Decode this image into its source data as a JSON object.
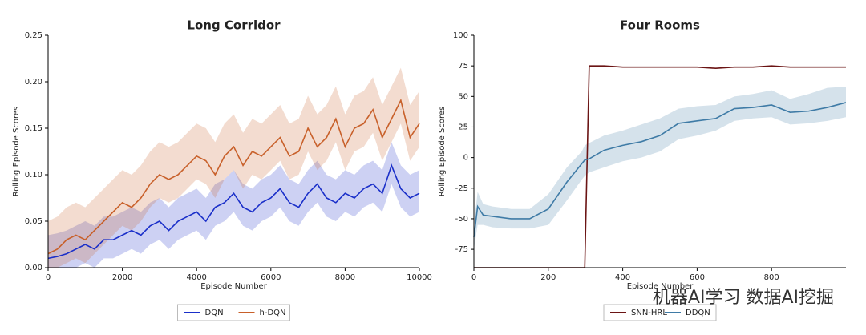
{
  "chart_data": [
    {
      "type": "line",
      "title": "Long Corridor",
      "x_label": "Episode Number",
      "y_label": "Rolling Episode Scores",
      "x": [
        0,
        250,
        500,
        750,
        1000,
        1250,
        1500,
        1750,
        2000,
        2250,
        2500,
        2750,
        3000,
        3250,
        3500,
        3750,
        4000,
        4250,
        4500,
        4750,
        5000,
        5250,
        5500,
        5750,
        6000,
        6250,
        6500,
        6750,
        7000,
        7250,
        7500,
        7750,
        8000,
        8250,
        8500,
        8750,
        9000,
        9250,
        9500,
        9750,
        10000
      ],
      "series": [
        {
          "name": "DQN",
          "color": "#1a2fc9",
          "values": [
            0.01,
            0.012,
            0.015,
            0.02,
            0.025,
            0.02,
            0.03,
            0.03,
            0.035,
            0.04,
            0.035,
            0.045,
            0.05,
            0.04,
            0.05,
            0.055,
            0.06,
            0.05,
            0.065,
            0.07,
            0.08,
            0.065,
            0.06,
            0.07,
            0.075,
            0.085,
            0.07,
            0.065,
            0.08,
            0.09,
            0.075,
            0.07,
            0.08,
            0.075,
            0.085,
            0.09,
            0.08,
            0.11,
            0.085,
            0.075,
            0.08
          ],
          "lower": [
            0,
            0,
            0,
            0,
            0.005,
            0,
            0.01,
            0.01,
            0.015,
            0.02,
            0.015,
            0.025,
            0.03,
            0.02,
            0.03,
            0.035,
            0.04,
            0.03,
            0.045,
            0.05,
            0.06,
            0.045,
            0.04,
            0.05,
            0.055,
            0.065,
            0.05,
            0.045,
            0.06,
            0.07,
            0.055,
            0.05,
            0.06,
            0.055,
            0.065,
            0.07,
            0.06,
            0.09,
            0.065,
            0.055,
            0.06
          ],
          "upper": [
            0.035,
            0.037,
            0.04,
            0.045,
            0.05,
            0.045,
            0.055,
            0.055,
            0.06,
            0.065,
            0.06,
            0.07,
            0.075,
            0.065,
            0.075,
            0.08,
            0.085,
            0.075,
            0.09,
            0.095,
            0.105,
            0.09,
            0.085,
            0.095,
            0.1,
            0.11,
            0.095,
            0.09,
            0.105,
            0.115,
            0.1,
            0.095,
            0.105,
            0.1,
            0.11,
            0.115,
            0.105,
            0.135,
            0.11,
            0.1,
            0.105
          ]
        },
        {
          "name": "h-DQN",
          "color": "#c8602a",
          "values": [
            0.015,
            0.02,
            0.03,
            0.035,
            0.03,
            0.04,
            0.05,
            0.06,
            0.07,
            0.065,
            0.075,
            0.09,
            0.1,
            0.095,
            0.1,
            0.11,
            0.12,
            0.115,
            0.1,
            0.12,
            0.13,
            0.11,
            0.125,
            0.12,
            0.13,
            0.14,
            0.12,
            0.125,
            0.15,
            0.13,
            0.14,
            0.16,
            0.13,
            0.15,
            0.155,
            0.17,
            0.14,
            0.16,
            0.18,
            0.14,
            0.155
          ],
          "lower": [
            0,
            0,
            0.005,
            0.01,
            0.005,
            0.015,
            0.025,
            0.035,
            0.045,
            0.04,
            0.05,
            0.065,
            0.075,
            0.07,
            0.075,
            0.085,
            0.095,
            0.09,
            0.075,
            0.095,
            0.105,
            0.085,
            0.1,
            0.095,
            0.105,
            0.115,
            0.095,
            0.1,
            0.125,
            0.105,
            0.115,
            0.135,
            0.105,
            0.125,
            0.13,
            0.145,
            0.115,
            0.135,
            0.155,
            0.115,
            0.13
          ],
          "upper": [
            0.05,
            0.055,
            0.065,
            0.07,
            0.065,
            0.075,
            0.085,
            0.095,
            0.105,
            0.1,
            0.11,
            0.125,
            0.135,
            0.13,
            0.135,
            0.145,
            0.155,
            0.15,
            0.135,
            0.155,
            0.165,
            0.145,
            0.16,
            0.155,
            0.165,
            0.175,
            0.155,
            0.16,
            0.185,
            0.165,
            0.175,
            0.195,
            0.165,
            0.185,
            0.19,
            0.205,
            0.175,
            0.195,
            0.215,
            0.175,
            0.19
          ]
        }
      ],
      "xlim": [
        0,
        10000
      ],
      "xticks": [
        0,
        2000,
        4000,
        6000,
        8000,
        10000
      ],
      "ylim": [
        0,
        0.25
      ],
      "yticks": [
        {
          "value": 0,
          "label": "0.00"
        },
        {
          "value": 0.05,
          "label": "0.05"
        },
        {
          "value": 0.1,
          "label": "0.10"
        },
        {
          "value": 0.15,
          "label": "0.15"
        },
        {
          "value": 0.2,
          "label": "0.20"
        },
        {
          "value": 0.25,
          "label": "0.25"
        }
      ],
      "legend": "lower center"
    },
    {
      "type": "line",
      "title": "Four Rooms",
      "x_label": "Episode Number",
      "y_label": "Rolling Episode Scores",
      "x": [
        0,
        10,
        25,
        50,
        100,
        150,
        200,
        250,
        290,
        298,
        310,
        350,
        400,
        450,
        500,
        550,
        600,
        650,
        700,
        750,
        800,
        850,
        900,
        950,
        1000
      ],
      "series": [
        {
          "name": "SNN-HRL",
          "color": "#6b1414",
          "values": [
            -90,
            -90,
            -90,
            -90,
            -90,
            -90,
            -90,
            -90,
            -90,
            -90,
            75,
            75,
            74,
            74,
            74,
            74,
            74,
            73,
            74,
            74,
            75,
            74,
            74,
            74,
            74
          ]
        },
        {
          "name": "DDQN",
          "color": "#3f7ba6",
          "values": [
            -65,
            -40,
            -47,
            -48,
            -50,
            -50,
            -42,
            -20,
            -5,
            -2,
            -1,
            6,
            10,
            13,
            18,
            28,
            30,
            32,
            40,
            41,
            43,
            37,
            38,
            41,
            45
          ],
          "lower": [
            -75,
            -55,
            -55,
            -57,
            -58,
            -58,
            -55,
            -35,
            -18,
            -15,
            -12,
            -8,
            -3,
            0,
            5,
            15,
            18,
            22,
            30,
            32,
            33,
            27,
            28,
            30,
            33
          ],
          "upper": [
            -55,
            -28,
            -38,
            -40,
            -42,
            -42,
            -30,
            -8,
            5,
            10,
            12,
            18,
            22,
            27,
            32,
            40,
            42,
            43,
            50,
            52,
            55,
            48,
            52,
            57,
            58
          ]
        }
      ],
      "xlim": [
        0,
        1000
      ],
      "xticks": [
        0,
        200,
        400,
        600,
        800
      ],
      "ylim": [
        -90,
        100
      ],
      "yticks": [
        -75,
        -50,
        -25,
        0,
        25,
        50,
        75,
        100
      ],
      "legend": "lower center"
    }
  ],
  "watermark": "机器AI学习 数据AI挖掘"
}
